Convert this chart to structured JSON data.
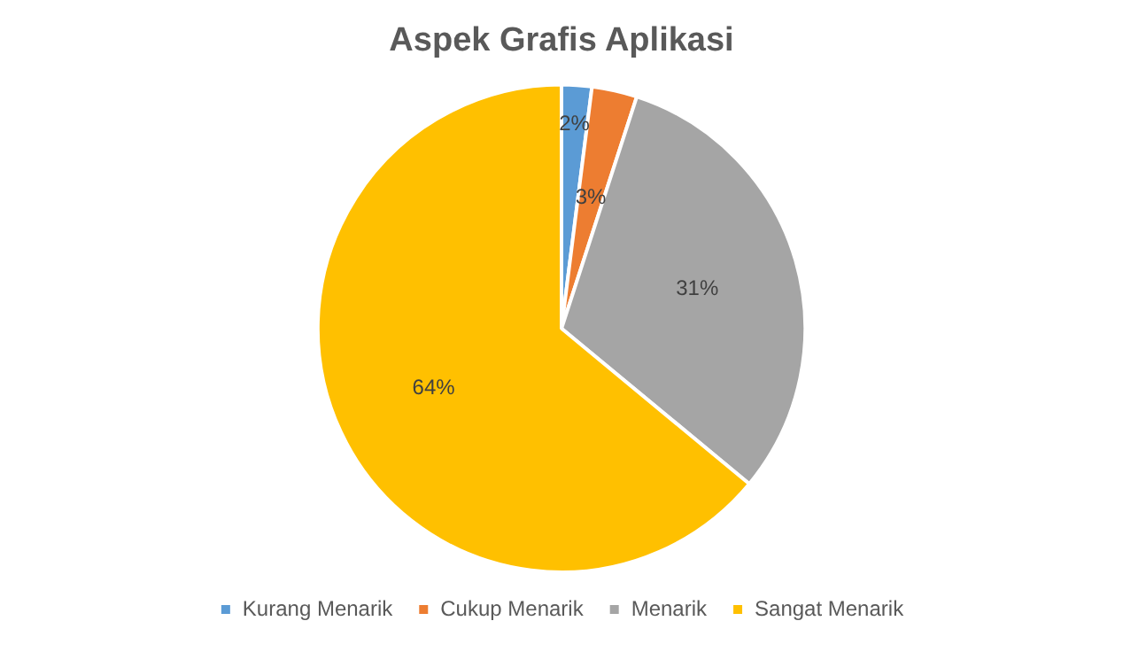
{
  "chart_data": {
    "type": "pie",
    "title": "Aspek Grafis Aplikasi",
    "categories": [
      "Kurang Menarik",
      "Cukup Menarik",
      "Menarik",
      "Sangat Menarik"
    ],
    "values": [
      2,
      3,
      31,
      64
    ],
    "colors": [
      "#5b9bd5",
      "#ed7d31",
      "#a5a5a5",
      "#ffc000"
    ],
    "value_labels": [
      "2%",
      "3%",
      "31%",
      "64%"
    ],
    "legend": "bottom"
  }
}
